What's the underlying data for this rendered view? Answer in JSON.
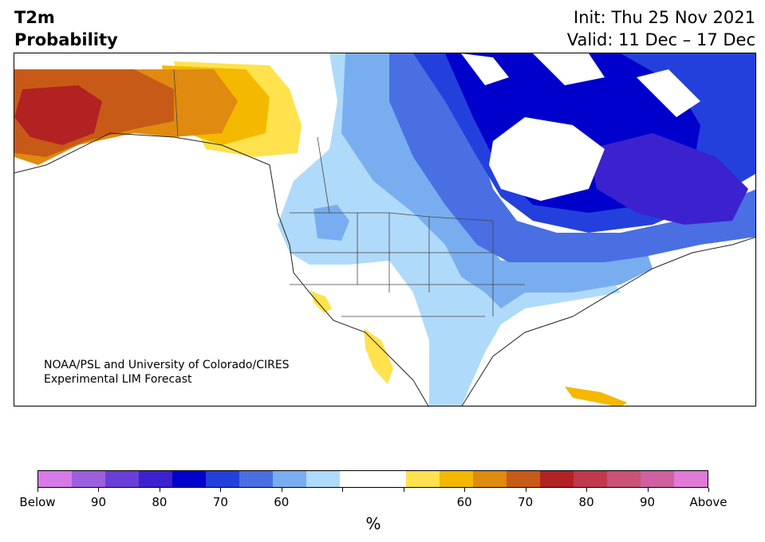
{
  "title": {
    "variable": "T2m",
    "subtitle": "Probability",
    "init": "Init: Thu 25 Nov 2021",
    "valid": "Valid: 11 Dec – 17 Dec"
  },
  "credit": {
    "line1": "NOAA/PSL and University of Colorado/CIRES",
    "line2": "Experimental LIM Forecast"
  },
  "colorbar": {
    "unit": "%",
    "colors": [
      "#d67ae6",
      "#9b5fe0",
      "#6a3ed8",
      "#3c22cf",
      "#0000cc",
      "#2440dc",
      "#4a6fe3",
      "#78aef0",
      "#b0dafa",
      "#ffffff",
      "#ffffff",
      "#ffe24d",
      "#f5b800",
      "#e08a0f",
      "#c85a18",
      "#b22222",
      "#c0394f",
      "#c95276",
      "#d060a0",
      "#e07ad6"
    ],
    "ticks": [
      "Below",
      "90",
      "80",
      "70",
      "60",
      "",
      "",
      "60",
      "70",
      "80",
      "90",
      "Above"
    ]
  }
}
